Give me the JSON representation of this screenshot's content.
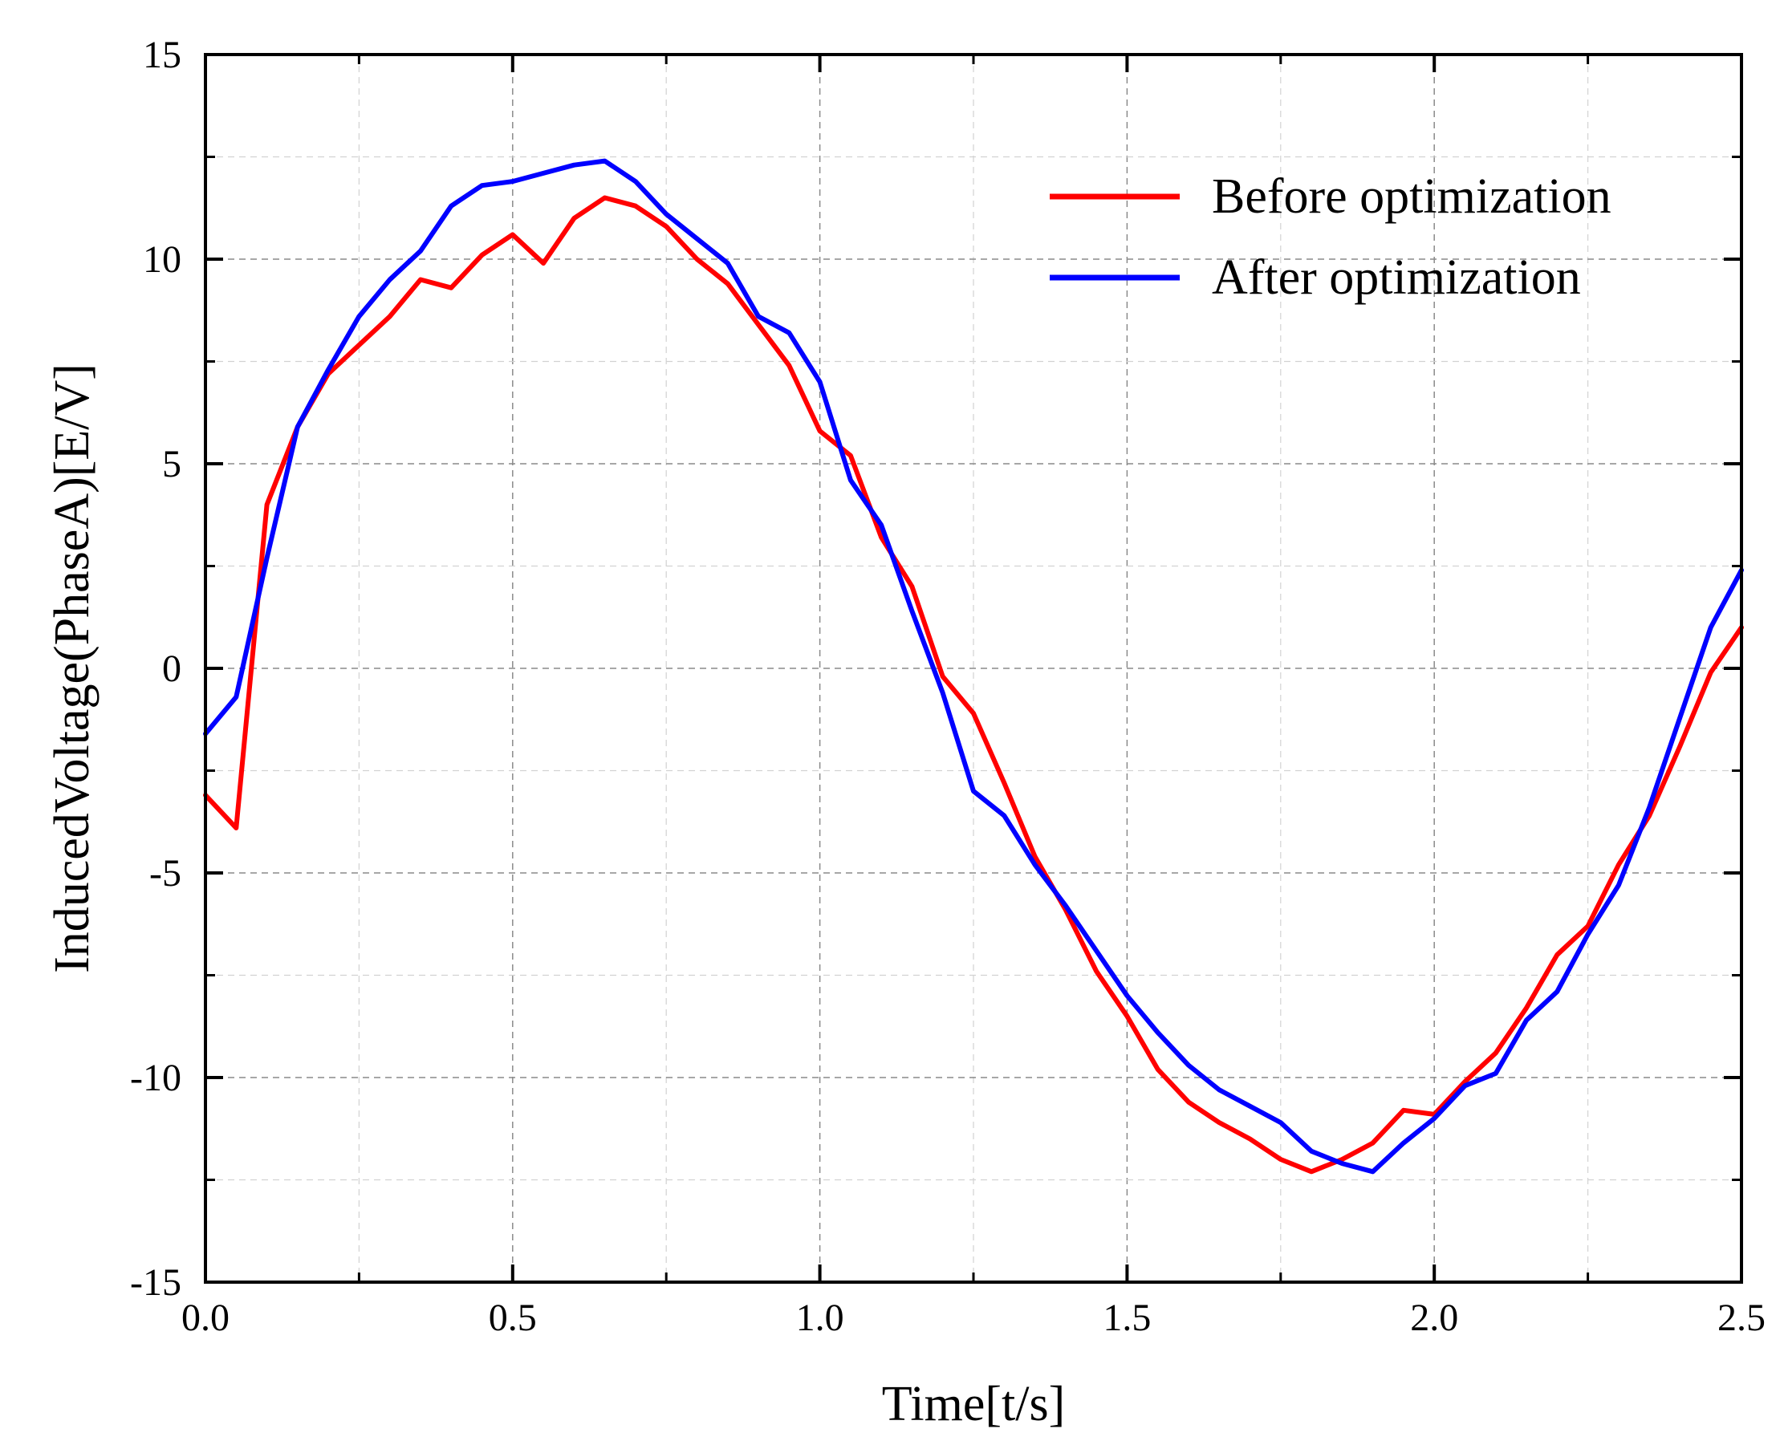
{
  "chart_data": {
    "type": "line",
    "title": "",
    "xlabel": "Time[t/s]",
    "ylabel": "InducedVoltage(PhaseA)[E/V]",
    "xlim": [
      0,
      2.5
    ],
    "ylim": [
      -15,
      15
    ],
    "x_ticks": [
      0.0,
      0.5,
      1.0,
      1.5,
      2.0,
      2.5
    ],
    "x_tick_labels": [
      "0.0",
      "0.5",
      "1.0",
      "1.5",
      "2.0",
      "2.5"
    ],
    "y_ticks": [
      15,
      10,
      5,
      0,
      -5,
      -10,
      -15
    ],
    "y_tick_labels": [
      "15",
      "10",
      "5",
      "0",
      "-5",
      "-10",
      "-15"
    ],
    "grid": true,
    "legend_position": "top-right",
    "x": [
      0,
      0.05,
      0.1,
      0.15,
      0.2,
      0.25,
      0.3,
      0.35,
      0.4,
      0.45,
      0.5,
      0.55,
      0.6,
      0.65,
      0.7,
      0.75,
      0.8,
      0.85,
      0.9,
      0.95,
      1.0,
      1.05,
      1.1,
      1.15,
      1.2,
      1.25,
      1.3,
      1.35,
      1.4,
      1.45,
      1.5,
      1.55,
      1.6,
      1.65,
      1.7,
      1.75,
      1.8,
      1.85,
      1.9,
      1.95,
      2.0,
      2.05,
      2.1,
      2.15,
      2.2,
      2.25,
      2.3,
      2.35,
      2.4,
      2.45,
      2.5
    ],
    "series": [
      {
        "name": "Before optimization",
        "color": "#ff0000",
        "values": [
          -3.1,
          -3.9,
          4.0,
          5.9,
          7.2,
          7.9,
          8.6,
          9.5,
          9.3,
          10.1,
          10.6,
          9.9,
          11.0,
          11.5,
          11.3,
          10.8,
          10.0,
          9.4,
          8.4,
          7.4,
          5.8,
          5.2,
          3.2,
          2.0,
          -0.2,
          -1.1,
          -2.8,
          -4.6,
          -5.9,
          -7.4,
          -8.5,
          -9.8,
          -10.6,
          -11.1,
          -11.5,
          -12.0,
          -12.3,
          -12.0,
          -11.6,
          -10.8,
          -10.9,
          -10.1,
          -9.4,
          -8.3,
          -7.0,
          -6.3,
          -4.8,
          -3.6,
          -1.9,
          -0.1,
          1.0
        ]
      },
      {
        "name": "After optimization",
        "color": "#0000ff",
        "values": [
          -1.6,
          -0.7,
          2.7,
          5.9,
          7.3,
          8.6,
          9.5,
          10.2,
          11.3,
          11.8,
          11.9,
          12.1,
          12.3,
          12.4,
          11.9,
          11.1,
          10.5,
          9.9,
          8.6,
          8.2,
          7.0,
          4.6,
          3.5,
          1.4,
          -0.6,
          -3.0,
          -3.6,
          -4.8,
          -5.8,
          -6.9,
          -8.0,
          -8.9,
          -9.7,
          -10.3,
          -10.7,
          -11.1,
          -11.8,
          -12.1,
          -12.3,
          -11.6,
          -11.0,
          -10.2,
          -9.9,
          -8.6,
          -7.9,
          -6.5,
          -5.3,
          -3.4,
          -1.2,
          1.0,
          2.4
        ]
      }
    ]
  }
}
